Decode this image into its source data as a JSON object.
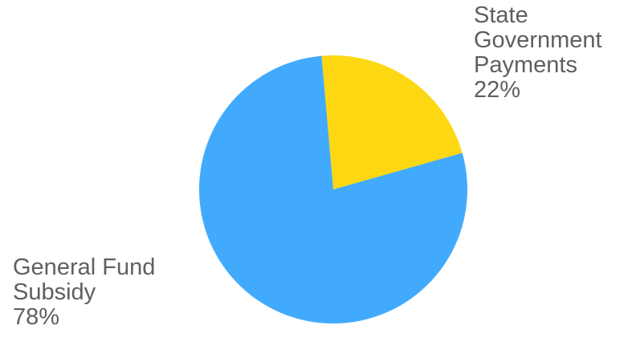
{
  "chart_data": {
    "type": "pie",
    "title": "",
    "slices": [
      {
        "label": "State Government Payments",
        "value": 22,
        "display": "22%",
        "color": "#FDD712",
        "label_lines": [
          "State",
          "Government",
          "Payments",
          "22%"
        ]
      },
      {
        "label": "General Fund Subsidy",
        "value": 78,
        "display": "78%",
        "color": "#42AAFC",
        "label_lines": [
          "General Fund",
          "Subsidy",
          "78%"
        ]
      }
    ],
    "start_angle_deg": 355,
    "direction": "clockwise",
    "legend": "none"
  }
}
